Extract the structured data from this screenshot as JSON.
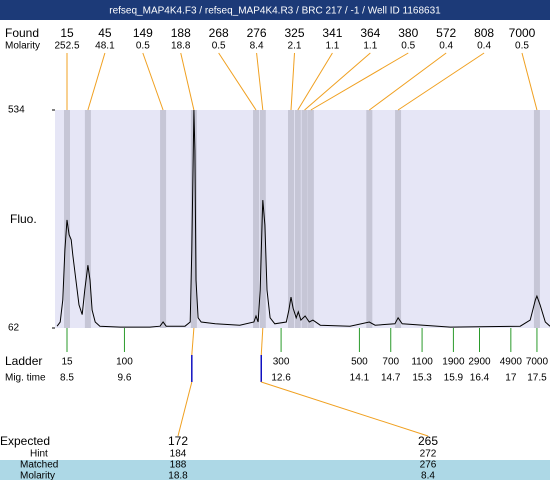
{
  "header": {
    "title": "refseq_MAP4K4.F3 / refseq_MAP4K4.R3 / BRC 217 / -1 / Well ID 1168631"
  },
  "chart_data": {
    "type": "line",
    "y_label": "Fluo.",
    "ylim": [
      62,
      534
    ],
    "yticks": [
      534,
      62
    ],
    "xlim": [
      8.27,
      17.75
    ],
    "color": "#000000",
    "x": [
      8.31,
      8.37,
      8.42,
      8.46,
      8.5,
      8.54,
      8.58,
      8.61,
      8.67,
      8.73,
      8.79,
      8.84,
      8.9,
      8.94,
      8.98,
      9.04,
      9.13,
      9.52,
      10.09,
      10.28,
      10.34,
      10.4,
      10.76,
      10.86,
      10.89,
      10.93,
      10.95,
      10.97,
      11.01,
      11.07,
      11.34,
      11.81,
      12.08,
      12.12,
      12.16,
      12.2,
      12.24,
      12.25,
      12.29,
      12.33,
      12.39,
      12.48,
      12.7,
      12.75,
      12.79,
      12.83,
      12.89,
      12.93,
      12.98,
      13.06,
      13.14,
      13.21,
      13.35,
      13.92,
      14.29,
      14.4,
      14.78,
      14.84,
      14.92,
      15.84,
      17.18,
      17.37,
      17.47,
      17.5,
      17.56,
      17.66,
      17.75
    ],
    "values": [
      66,
      75,
      123,
      231,
      296,
      264,
      253,
      220,
      166,
      112,
      91,
      145,
      198,
      166,
      101,
      75,
      66,
      64,
      64,
      66,
      75,
      66,
      66,
      75,
      231,
      534,
      447,
      166,
      84,
      75,
      71,
      68,
      75,
      88,
      75,
      144,
      307,
      339,
      285,
      144,
      84,
      71,
      75,
      101,
      129,
      105,
      84,
      97,
      79,
      88,
      75,
      79,
      68,
      66,
      75,
      68,
      71,
      84,
      71,
      64,
      66,
      79,
      123,
      131,
      112,
      75,
      66
    ],
    "found": {
      "label": "Found",
      "molarity_label": "Molarity",
      "sizes": [
        15,
        45,
        149,
        188,
        268,
        276,
        325,
        341,
        364,
        380,
        572,
        808,
        7000
      ],
      "molarity": [
        252.5,
        48.1,
        0.5,
        18.8,
        0.5,
        8.4,
        2.1,
        1.1,
        1.1,
        0.5,
        0.4,
        0.4,
        0.5
      ],
      "times": [
        8.5,
        8.9,
        10.34,
        10.93,
        12.12,
        12.25,
        12.79,
        12.92,
        13.05,
        13.17,
        14.29,
        14.84,
        17.5
      ]
    },
    "ladder": {
      "label": "Ladder",
      "time_label": "Mig. time",
      "sizes": [
        15,
        100,
        300,
        500,
        700,
        1100,
        1900,
        2900,
        4900,
        7000
      ],
      "times": [
        8.5,
        9.6,
        12.6,
        14.1,
        14.7,
        15.3,
        15.9,
        16.4,
        17,
        17.5
      ]
    },
    "expected": {
      "label": "Expected",
      "hint_label": "Hint",
      "matched_label": "Matched",
      "molarity_label": "Molarity",
      "sizes": [
        172,
        265
      ],
      "hints": [
        184,
        272
      ],
      "matched": [
        188,
        276
      ],
      "molarity": [
        18.8,
        8.4
      ],
      "times": [
        10.89,
        12.22
      ]
    }
  }
}
